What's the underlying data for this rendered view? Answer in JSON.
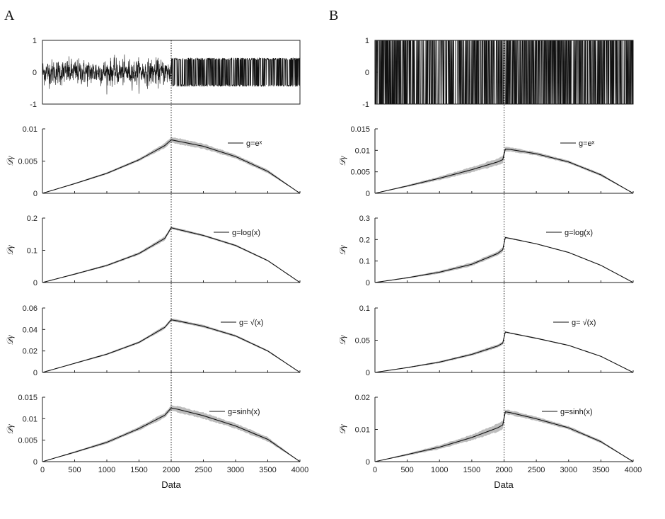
{
  "figure": {
    "panel_letters": [
      "A",
      "B"
    ],
    "ylabel": "𝒟γ",
    "xlabel": "Data"
  },
  "chart_data": [
    {
      "panel": "A",
      "type": "line",
      "role": "signal",
      "xlim": [
        0,
        4000
      ],
      "ylim": [
        -1,
        1
      ],
      "yticks": [
        "1",
        "0",
        "-1"
      ],
      "change_point": 2000,
      "segments": [
        {
          "from": 0,
          "to": 2000,
          "amplitude": 0.45,
          "style": "gaussian"
        },
        {
          "from": 2000,
          "to": 4000,
          "amplitude": 0.45,
          "style": "uniform"
        }
      ]
    },
    {
      "panel": "A",
      "type": "area",
      "legend": "g=eˣ",
      "xlim": [
        0,
        4000
      ],
      "ylim": [
        0,
        0.01
      ],
      "yticks": [
        "0.01",
        "0.005",
        "0"
      ],
      "x": [
        0,
        500,
        1000,
        1500,
        1900,
        2000,
        2100,
        2500,
        3000,
        3500,
        4000
      ],
      "values": [
        0,
        0.0015,
        0.0031,
        0.0052,
        0.0074,
        0.0083,
        0.0081,
        0.0073,
        0.0057,
        0.0034,
        0
      ],
      "band": [
        0,
        0.0001,
        0.00015,
        0.0002,
        0.00035,
        0.0004,
        0.00045,
        0.0004,
        0.0003,
        0.00025,
        0
      ]
    },
    {
      "panel": "A",
      "type": "area",
      "legend": "g=log(x)",
      "xlim": [
        0,
        4000
      ],
      "ylim": [
        0,
        0.2
      ],
      "yticks": [
        "0.2",
        "0.1",
        "0"
      ],
      "x": [
        0,
        500,
        1000,
        1500,
        1900,
        2000,
        2100,
        2500,
        3000,
        3500,
        4000
      ],
      "values": [
        0,
        0.026,
        0.053,
        0.09,
        0.137,
        0.17,
        0.165,
        0.146,
        0.115,
        0.068,
        0
      ],
      "band": [
        0,
        0.002,
        0.003,
        0.004,
        0.006,
        0.004,
        0.004,
        0.003,
        0.003,
        0.002,
        0
      ]
    },
    {
      "panel": "A",
      "type": "area",
      "legend": "g= √(x)",
      "xlim": [
        0,
        4000
      ],
      "ylim": [
        0,
        0.06
      ],
      "yticks": [
        "0.06",
        "0.04",
        "0.02",
        "0"
      ],
      "x": [
        0,
        500,
        1000,
        1500,
        1900,
        2000,
        2100,
        2500,
        3000,
        3500,
        4000
      ],
      "values": [
        0,
        0.0085,
        0.017,
        0.028,
        0.042,
        0.049,
        0.048,
        0.043,
        0.034,
        0.02,
        0
      ],
      "band": [
        0,
        0.0005,
        0.0008,
        0.001,
        0.0015,
        0.0013,
        0.0013,
        0.0012,
        0.001,
        0.0008,
        0
      ]
    },
    {
      "panel": "A",
      "type": "area",
      "legend": "g=sinh(x)",
      "xlim": [
        0,
        4000
      ],
      "ylim": [
        0,
        0.015
      ],
      "yticks": [
        "0.015",
        "0.01",
        "0.005",
        "0"
      ],
      "x": [
        0,
        500,
        1000,
        1500,
        1900,
        2000,
        2100,
        2500,
        3000,
        3500,
        4000
      ],
      "values": [
        0,
        0.0022,
        0.0045,
        0.0077,
        0.0108,
        0.0125,
        0.0122,
        0.0107,
        0.0083,
        0.0052,
        0
      ],
      "band": [
        0,
        0.0002,
        0.0003,
        0.0004,
        0.0006,
        0.0006,
        0.0007,
        0.0007,
        0.0006,
        0.0005,
        0
      ]
    },
    {
      "panel": "B",
      "type": "line",
      "role": "signal",
      "xlim": [
        0,
        4000
      ],
      "ylim": [
        -1,
        1
      ],
      "yticks": [
        "1",
        "0",
        "-1"
      ],
      "change_point": 2000,
      "segments": [
        {
          "from": 0,
          "to": 4000,
          "amplitude": 1.0,
          "style": "binary"
        }
      ]
    },
    {
      "panel": "B",
      "type": "area",
      "legend": "g=eˣ",
      "xlim": [
        0,
        4000
      ],
      "ylim": [
        0,
        0.015
      ],
      "yticks": [
        "0.015",
        "0.01",
        "0.005",
        "0"
      ],
      "x": [
        0,
        500,
        1000,
        1500,
        1900,
        1990,
        2010,
        2100,
        2500,
        3000,
        3500,
        4000
      ],
      "values": [
        0,
        0.0017,
        0.0035,
        0.0055,
        0.0073,
        0.0079,
        0.0103,
        0.0102,
        0.0092,
        0.0073,
        0.0043,
        0
      ],
      "band": [
        0,
        0.0002,
        0.0004,
        0.0006,
        0.0008,
        0.0008,
        0.0005,
        0.0005,
        0.0004,
        0.0003,
        0.0003,
        0
      ]
    },
    {
      "panel": "B",
      "type": "area",
      "legend": "g=log(x)",
      "xlim": [
        0,
        4000
      ],
      "ylim": [
        0,
        0.3
      ],
      "yticks": [
        "0.3",
        "0.2",
        "0.1",
        "0"
      ],
      "x": [
        0,
        500,
        1000,
        1500,
        1900,
        1990,
        2010,
        2100,
        2500,
        3000,
        3500,
        4000
      ],
      "values": [
        0,
        0.022,
        0.048,
        0.085,
        0.135,
        0.155,
        0.21,
        0.205,
        0.18,
        0.14,
        0.08,
        0
      ],
      "band": [
        0,
        0.003,
        0.006,
        0.008,
        0.01,
        0.01,
        0.004,
        0.003,
        0.002,
        0.002,
        0.002,
        0
      ]
    },
    {
      "panel": "B",
      "type": "area",
      "legend": "g= √(x)",
      "xlim": [
        0,
        4000
      ],
      "ylim": [
        0,
        0.1
      ],
      "yticks": [
        "0.1",
        "0.05",
        "0"
      ],
      "x": [
        0,
        500,
        1000,
        1500,
        1900,
        1990,
        2010,
        2100,
        2500,
        3000,
        3500,
        4000
      ],
      "values": [
        0,
        0.0075,
        0.016,
        0.028,
        0.041,
        0.046,
        0.063,
        0.061,
        0.053,
        0.042,
        0.025,
        0
      ],
      "band": [
        0,
        0.0008,
        0.0015,
        0.002,
        0.0025,
        0.0025,
        0.0012,
        0.001,
        0.001,
        0.0008,
        0.0006,
        0
      ]
    },
    {
      "panel": "B",
      "type": "area",
      "legend": "g=sinh(x)",
      "xlim": [
        0,
        4000
      ],
      "ylim": [
        0,
        0.02
      ],
      "yticks": [
        "0.02",
        "0.01",
        "0"
      ],
      "x": [
        0,
        500,
        1000,
        1500,
        1900,
        1990,
        2010,
        2100,
        2500,
        3000,
        3500,
        4000
      ],
      "values": [
        0,
        0.0022,
        0.0045,
        0.0075,
        0.0105,
        0.0115,
        0.0155,
        0.0152,
        0.0133,
        0.0105,
        0.0062,
        0
      ],
      "band": [
        0,
        0.0003,
        0.0006,
        0.0009,
        0.0012,
        0.0012,
        0.0007,
        0.0007,
        0.0006,
        0.0005,
        0.0004,
        0
      ]
    }
  ],
  "xaxis": {
    "ticks": [
      "0",
      "500",
      "1000",
      "1500",
      "2000",
      "2500",
      "3000",
      "3500",
      "4000"
    ],
    "values": [
      0,
      500,
      1000,
      1500,
      2000,
      2500,
      3000,
      3500,
      4000
    ]
  },
  "colors": {
    "line": "#111111",
    "band": "#bdbdbd",
    "axis": "#222222",
    "background": "#ffffff"
  }
}
